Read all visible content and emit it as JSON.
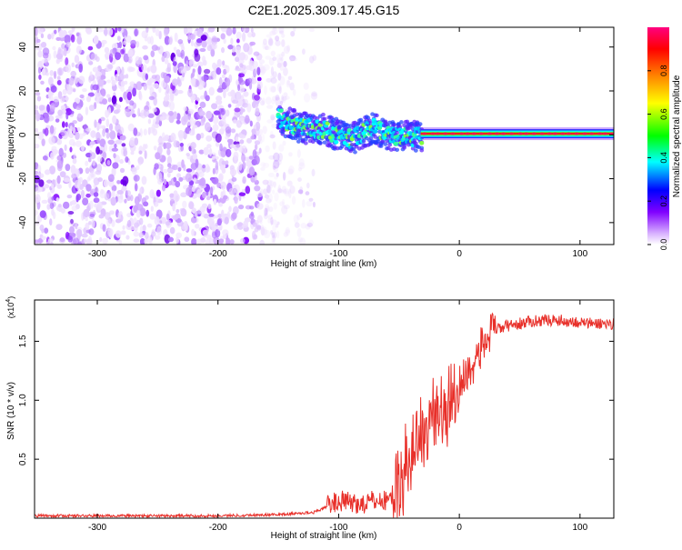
{
  "title": "C2E1.2025.309.17.45.G15",
  "chart_data": [
    {
      "type": "heatmap",
      "xlabel": "Height of straight line (km)",
      "ylabel": "Frequency (Hz)",
      "xlim": [
        -352,
        128
      ],
      "ylim": [
        -50,
        49
      ],
      "x_ticks": [
        -300,
        -200,
        -100,
        0,
        100
      ],
      "x_tick_labels": [
        "-300",
        "-200",
        "-100",
        "0",
        "100"
      ],
      "y_ticks": [
        -40,
        -20,
        0,
        20,
        40
      ],
      "y_tick_labels": [
        "-40",
        "-20",
        "0",
        "20",
        "40"
      ],
      "colorbar": {
        "label": "Normalized spectral amplitude",
        "range": [
          0,
          1
        ],
        "ticks": [
          0,
          0.2,
          0.4,
          0.6,
          0.8
        ],
        "tick_labels": [
          "0.0",
          "0.2",
          "0.4",
          "0.6",
          "0.8"
        ]
      },
      "features": {
        "noise_region_x": [
          -352,
          -145
        ],
        "signal_track": [
          [
            -150,
            8
          ],
          [
            -140,
            5
          ],
          [
            -130,
            3
          ],
          [
            -120,
            3
          ],
          [
            -110,
            2
          ],
          [
            -100,
            0
          ],
          [
            -90,
            -2
          ],
          [
            -80,
            1
          ],
          [
            -70,
            3
          ],
          [
            -60,
            0
          ],
          [
            -50,
            -1
          ],
          [
            -40,
            -1
          ],
          [
            -30,
            0
          ],
          [
            -10,
            1
          ],
          [
            0,
            1
          ],
          [
            50,
            0.5
          ],
          [
            128,
            0.5
          ]
        ],
        "color_map": [
          "#ffffff",
          "#d9b3ff",
          "#8000ff",
          "#0000ff",
          "#00ffff",
          "#00ff00",
          "#ffff00",
          "#ff8000",
          "#ff0000",
          "#ff0080"
        ]
      }
    },
    {
      "type": "line",
      "xlabel": "Height of straight line (km)",
      "ylabel": "SNR (10 * v/v)",
      "y_multiplier": "(x10",
      "y_multiplier_exp": "4",
      "y_multiplier_close": ")",
      "xlim": [
        -352,
        128
      ],
      "ylim": [
        0,
        1.85
      ],
      "x_ticks": [
        -300,
        -200,
        -100,
        0,
        100
      ],
      "x_tick_labels": [
        "-300",
        "-200",
        "-100",
        "0",
        "100"
      ],
      "y_ticks": [
        0.5,
        1.0,
        1.5
      ],
      "y_tick_labels": [
        "0.5",
        "1.0",
        "1.5"
      ],
      "series": [
        {
          "color": "#e8302a",
          "x": [
            -352,
            -300,
            -250,
            -200,
            -150,
            -120,
            -110,
            -100,
            -90,
            -80,
            -70,
            -60,
            -50,
            -45,
            -40,
            -35,
            -30,
            -25,
            -20,
            -15,
            -10,
            -5,
            0,
            5,
            10,
            15,
            20,
            25,
            30,
            40,
            50,
            60,
            70,
            80,
            90,
            100,
            110,
            120,
            128
          ],
          "y": [
            0.02,
            0.02,
            0.02,
            0.02,
            0.03,
            0.05,
            0.1,
            0.15,
            0.13,
            0.12,
            0.15,
            0.15,
            0.25,
            0.4,
            0.55,
            0.65,
            0.75,
            0.8,
            0.9,
            0.9,
            1.0,
            1.05,
            1.15,
            1.2,
            1.28,
            1.38,
            1.48,
            1.55,
            1.6,
            1.63,
            1.65,
            1.67,
            1.68,
            1.68,
            1.67,
            1.66,
            1.65,
            1.65,
            1.65
          ]
        }
      ]
    }
  ]
}
